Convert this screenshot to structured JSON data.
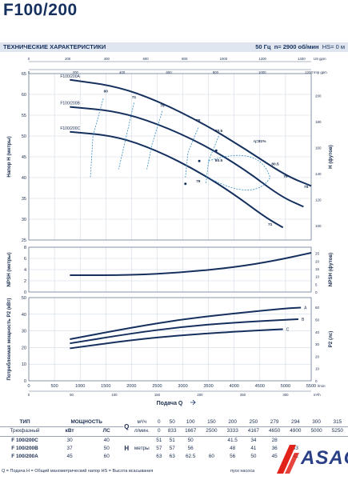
{
  "header": {
    "title": "F100/200"
  },
  "specs_bar": {
    "label": "ТЕХНИЧЕСКИЕ ХАРАКТЕРИСТИКИ",
    "freq": "50 Гц",
    "speed": "n= 2900 об/мин",
    "hs": "HS= 0 м"
  },
  "colors": {
    "curve": "#15305e",
    "eff": "#3a8fc0",
    "grid": "#c9d3e0",
    "text": "#1a2d4f"
  },
  "chart_data": [
    {
      "type": "line",
      "ylabel": "Напор H (метры)",
      "ylabel_right": "H (футов)",
      "ylim": [
        25,
        65
      ],
      "yticks": [
        25,
        30,
        35,
        40,
        45,
        50,
        55,
        60,
        65
      ],
      "yticks_right": [
        "100",
        "120",
        "140",
        "160",
        "180",
        "200"
      ],
      "top_axis_imp": {
        "label": "US gpm",
        "ticks": [
          "0",
          "200",
          "400",
          "600",
          "800",
          "1000",
          "1200",
          "1400"
        ]
      },
      "top_axis_us": {
        "label": "Imp gpm",
        "ticks": [
          "0",
          "200",
          "400",
          "600",
          "800",
          "1000",
          "1200"
        ]
      },
      "series": [
        {
          "name": "F100/200A",
          "x": [
            800,
            1700,
            2500,
            3400,
            4200,
            5000,
            5500
          ],
          "y": [
            63.5,
            62,
            58.5,
            53,
            47,
            40.5,
            38
          ]
        },
        {
          "name": "F100/200B",
          "x": [
            800,
            1700,
            2500,
            3400,
            4200,
            4900,
            5350
          ],
          "y": [
            57,
            56,
            53,
            48,
            42,
            35.5,
            33
          ]
        },
        {
          "name": "F100/200C",
          "x": [
            800,
            1700,
            2500,
            3300,
            4000,
            4600,
            4950
          ],
          "y": [
            51,
            50,
            46.5,
            41.5,
            36,
            30.5,
            28
          ]
        }
      ],
      "efficiency_labels": [
        "60",
        "71",
        "75",
        "79",
        "80.5",
        "η=81%",
        "80.5",
        "79",
        "75",
        "80.5",
        "79",
        "71"
      ],
      "annotations": [
        "71"
      ]
    },
    {
      "type": "line",
      "ylabel": "NPSH (метры)",
      "ylabel_right": "NPSH (футов)",
      "ylim": [
        0,
        8
      ],
      "yticks": [
        0,
        2,
        4,
        6,
        8
      ],
      "yticks_right": [
        "0",
        "5",
        "10",
        "15",
        "20",
        "25"
      ],
      "series": [
        {
          "name": "",
          "x": [
            800,
            2000,
            3000,
            4000,
            4800,
            5500
          ],
          "y": [
            3,
            3,
            3.5,
            4.4,
            5.6,
            7
          ]
        }
      ]
    },
    {
      "type": "line",
      "ylabel": "Потребляемая мощность P2 (кВт)",
      "ylabel_right": "P2 (лс)",
      "ylim": [
        0,
        50
      ],
      "yticks": [
        0,
        10,
        20,
        30,
        40,
        50
      ],
      "yticks_right": [
        "0",
        "10",
        "20",
        "30",
        "40",
        "50",
        "60"
      ],
      "xlabel": "Подача Q",
      "xlim": [
        0,
        5500
      ],
      "xticks": [
        "0",
        "500",
        "1000",
        "1500",
        "2000",
        "2500",
        "3000",
        "3500",
        "4000",
        "4500",
        "5000",
        "5500"
      ],
      "x_unit": "l/min",
      "bottom_axis": {
        "label": "m³/h",
        "ticks": [
          "0",
          "50",
          "100",
          "150",
          "200",
          "250",
          "300"
        ]
      },
      "series": [
        {
          "name": "A",
          "x": [
            800,
            2000,
            3000,
            4000,
            5000,
            5300
          ],
          "y": [
            25,
            32,
            37,
            40.5,
            43.5,
            44
          ]
        },
        {
          "name": "B",
          "x": [
            800,
            2000,
            3000,
            4000,
            4900,
            5250
          ],
          "y": [
            22.5,
            28.5,
            32.5,
            35,
            36.5,
            37
          ]
        },
        {
          "name": "C",
          "x": [
            800,
            2000,
            3000,
            4000,
            4600,
            4950
          ],
          "y": [
            19.5,
            24.5,
            27.5,
            29.5,
            30.5,
            31
          ]
        }
      ]
    }
  ],
  "table": {
    "col_type": "ТИП",
    "col_phase": "Трехфазный",
    "col_power": "МОЩНОСТЬ",
    "unit_kw": "кВт",
    "unit_hp": "ЛС",
    "q_label": "Q",
    "q_units": [
      "м³/ч",
      "л/мин."
    ],
    "h_label": "H",
    "h_unit": "метры",
    "q_m3h": [
      "0",
      "50",
      "100",
      "150",
      "200",
      "250",
      "279",
      "294",
      "300",
      "315"
    ],
    "q_lmin": [
      "0",
      "833",
      "1667",
      "2500",
      "3333",
      "4167",
      "4650",
      "4900",
      "5000",
      "5250"
    ],
    "rows": [
      {
        "type": "F 100/200C",
        "kw": "30",
        "hp": "40",
        "h": [
          "51",
          "51",
          "50",
          "",
          "41.5",
          "34",
          "28",
          "",
          "",
          ""
        ]
      },
      {
        "type": "F 100/200B",
        "kw": "37",
        "hp": "50",
        "h": [
          "57",
          "57",
          "56",
          "",
          "48",
          "41",
          "36",
          "33",
          "",
          ""
        ]
      },
      {
        "type": "F 100/200A",
        "kw": "45",
        "hp": "60",
        "h": [
          "63",
          "63",
          "62.5",
          "60",
          "56",
          "50",
          "45",
          "42",
          "",
          ""
        ]
      }
    ]
  },
  "footnote": "Q = Подача  H = Общий манометрический напор  HS = Высота всасывания",
  "footnote_right": "пуск насоса",
  "logo": {
    "text": "ASAO"
  }
}
